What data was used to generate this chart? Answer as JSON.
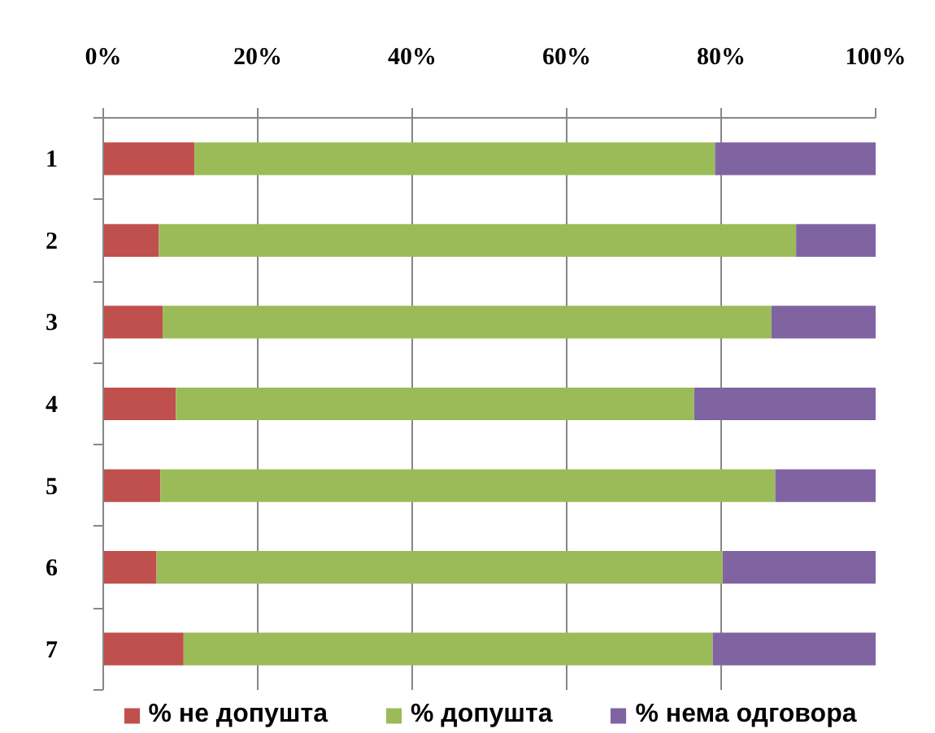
{
  "chart_data": {
    "type": "bar",
    "orientation": "horizontal",
    "stacked": true,
    "categories": [
      "1",
      "2",
      "3",
      "4",
      "5",
      "6",
      "7"
    ],
    "series": [
      {
        "name": "% не допушта",
        "color": "#c0504d",
        "values": [
          11.8,
          7.2,
          7.7,
          9.4,
          7.4,
          6.9,
          10.4
        ]
      },
      {
        "name": "% допушта",
        "color": "#9bbb59",
        "values": [
          67.4,
          82.5,
          78.8,
          67.1,
          79.6,
          73.3,
          68.5
        ]
      },
      {
        "name": "% нема одговора",
        "color": "#8064a2",
        "values": [
          20.8,
          10.3,
          13.5,
          23.5,
          13.0,
          19.8,
          21.1
        ]
      }
    ],
    "xlim": [
      0,
      100
    ],
    "xticks": [
      {
        "value": 0,
        "label": "0%"
      },
      {
        "value": 20,
        "label": "20%"
      },
      {
        "value": 40,
        "label": "40%"
      },
      {
        "value": 60,
        "label": "60%"
      },
      {
        "value": 80,
        "label": "80%"
      },
      {
        "value": 100,
        "label": "100%"
      }
    ],
    "grid": "x",
    "legend": "bottom"
  }
}
